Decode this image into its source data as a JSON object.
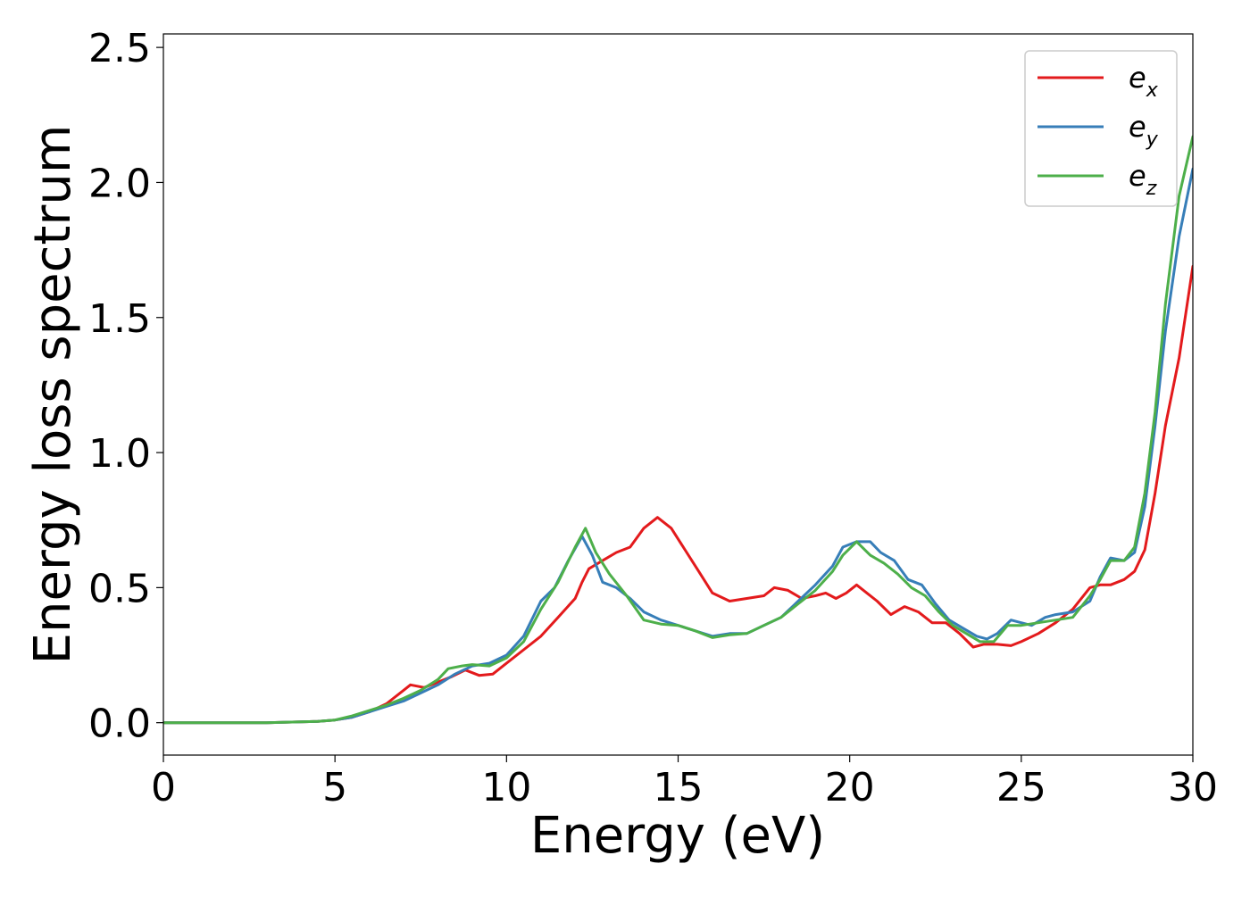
{
  "chart_data": {
    "type": "line",
    "title": "",
    "xlabel": "Energy (eV)",
    "ylabel": "Energy loss spectrum",
    "xlim": [
      0,
      30
    ],
    "ylim": [
      -0.12,
      2.55
    ],
    "xticks": [
      0,
      5,
      10,
      15,
      20,
      25,
      30
    ],
    "xtick_labels": [
      "0",
      "5",
      "10",
      "15",
      "20",
      "25",
      "30"
    ],
    "yticks": [
      0.0,
      0.5,
      1.0,
      1.5,
      2.0,
      2.5
    ],
    "ytick_labels": [
      "0.0",
      "0.5",
      "1.0",
      "1.5",
      "2.0",
      "2.5"
    ],
    "grid": false,
    "legend_position": "top-right",
    "series": [
      {
        "name": "e_x",
        "label_base": "e",
        "label_sub": "x",
        "color": "#e31a1c",
        "x": [
          0,
          3,
          4.5,
          5,
          5.5,
          6,
          6.5,
          7,
          7.2,
          7.6,
          8,
          8.4,
          8.8,
          9.2,
          9.6,
          10,
          10.5,
          11,
          11.5,
          12,
          12.2,
          12.4,
          12.8,
          13.2,
          13.6,
          14,
          14.4,
          14.8,
          15.2,
          15.6,
          16,
          16.5,
          17,
          17.5,
          17.8,
          18.2,
          18.6,
          19,
          19.3,
          19.6,
          19.9,
          20.2,
          20.5,
          20.8,
          21.2,
          21.6,
          22,
          22.4,
          22.8,
          23.2,
          23.6,
          23.9,
          24.3,
          24.7,
          25,
          25.5,
          26,
          26.5,
          27,
          27.3,
          27.6,
          28,
          28.3,
          28.6,
          28.9,
          29.2,
          29.6,
          30
        ],
        "y": [
          0.0,
          0.0,
          0.005,
          0.01,
          0.02,
          0.04,
          0.07,
          0.12,
          0.14,
          0.13,
          0.15,
          0.17,
          0.195,
          0.175,
          0.18,
          0.22,
          0.27,
          0.32,
          0.39,
          0.46,
          0.52,
          0.57,
          0.6,
          0.63,
          0.65,
          0.72,
          0.76,
          0.72,
          0.64,
          0.56,
          0.48,
          0.45,
          0.46,
          0.47,
          0.5,
          0.49,
          0.46,
          0.47,
          0.48,
          0.46,
          0.48,
          0.51,
          0.48,
          0.45,
          0.4,
          0.43,
          0.41,
          0.37,
          0.37,
          0.33,
          0.28,
          0.29,
          0.29,
          0.285,
          0.3,
          0.33,
          0.37,
          0.42,
          0.5,
          0.51,
          0.51,
          0.53,
          0.56,
          0.64,
          0.85,
          1.1,
          1.35,
          1.69
        ]
      },
      {
        "name": "e_y",
        "label_base": "e",
        "label_sub": "y",
        "color": "#377eb8",
        "x": [
          0,
          3,
          4.5,
          5,
          5.5,
          6,
          6.5,
          7,
          7.5,
          8,
          8.5,
          9,
          9.5,
          10,
          10.5,
          11,
          11.4,
          11.8,
          12.2,
          12.5,
          12.8,
          13.2,
          13.6,
          14,
          14.5,
          15,
          15.5,
          16,
          16.5,
          17,
          17.5,
          18,
          18.5,
          19,
          19.5,
          19.8,
          20.2,
          20.6,
          20.9,
          21.3,
          21.7,
          22.1,
          22.5,
          22.9,
          23.3,
          23.7,
          24,
          24.3,
          24.7,
          25,
          25.3,
          25.7,
          26,
          26.5,
          27,
          27.3,
          27.6,
          28,
          28.3,
          28.6,
          28.9,
          29.2,
          29.6,
          30
        ],
        "y": [
          0.0,
          0.0,
          0.005,
          0.01,
          0.02,
          0.04,
          0.06,
          0.08,
          0.11,
          0.14,
          0.18,
          0.21,
          0.22,
          0.25,
          0.32,
          0.45,
          0.5,
          0.6,
          0.69,
          0.62,
          0.52,
          0.5,
          0.46,
          0.41,
          0.38,
          0.36,
          0.34,
          0.32,
          0.33,
          0.33,
          0.36,
          0.39,
          0.45,
          0.51,
          0.58,
          0.65,
          0.67,
          0.67,
          0.63,
          0.6,
          0.53,
          0.51,
          0.44,
          0.38,
          0.35,
          0.32,
          0.31,
          0.33,
          0.38,
          0.37,
          0.36,
          0.39,
          0.4,
          0.41,
          0.45,
          0.54,
          0.61,
          0.6,
          0.63,
          0.8,
          1.1,
          1.45,
          1.8,
          2.05
        ]
      },
      {
        "name": "e_z",
        "label_base": "e",
        "label_sub": "z",
        "color": "#4daf4a",
        "x": [
          0,
          3,
          4.5,
          5,
          5.5,
          6,
          6.5,
          7,
          7.5,
          8,
          8.3,
          8.7,
          9,
          9.5,
          10,
          10.5,
          11,
          11.5,
          12,
          12.3,
          12.6,
          13,
          13.5,
          14,
          14.5,
          15,
          15.5,
          16,
          16.5,
          17,
          17.5,
          18,
          18.5,
          19,
          19.5,
          19.8,
          20.2,
          20.6,
          21,
          21.4,
          21.8,
          22.2,
          22.6,
          23,
          23.4,
          23.8,
          24.2,
          24.6,
          25,
          25.5,
          26,
          26.5,
          27,
          27.3,
          27.6,
          28,
          28.3,
          28.6,
          28.9,
          29.2,
          29.6,
          30
        ],
        "y": [
          0.0,
          0.0,
          0.005,
          0.01,
          0.025,
          0.045,
          0.065,
          0.09,
          0.12,
          0.16,
          0.2,
          0.21,
          0.215,
          0.21,
          0.24,
          0.3,
          0.42,
          0.52,
          0.65,
          0.72,
          0.63,
          0.55,
          0.47,
          0.38,
          0.365,
          0.36,
          0.34,
          0.315,
          0.325,
          0.33,
          0.36,
          0.39,
          0.44,
          0.49,
          0.56,
          0.62,
          0.67,
          0.62,
          0.59,
          0.55,
          0.5,
          0.47,
          0.41,
          0.36,
          0.33,
          0.3,
          0.3,
          0.36,
          0.36,
          0.37,
          0.38,
          0.39,
          0.47,
          0.53,
          0.6,
          0.6,
          0.65,
          0.85,
          1.15,
          1.55,
          1.95,
          2.17
        ]
      }
    ]
  }
}
